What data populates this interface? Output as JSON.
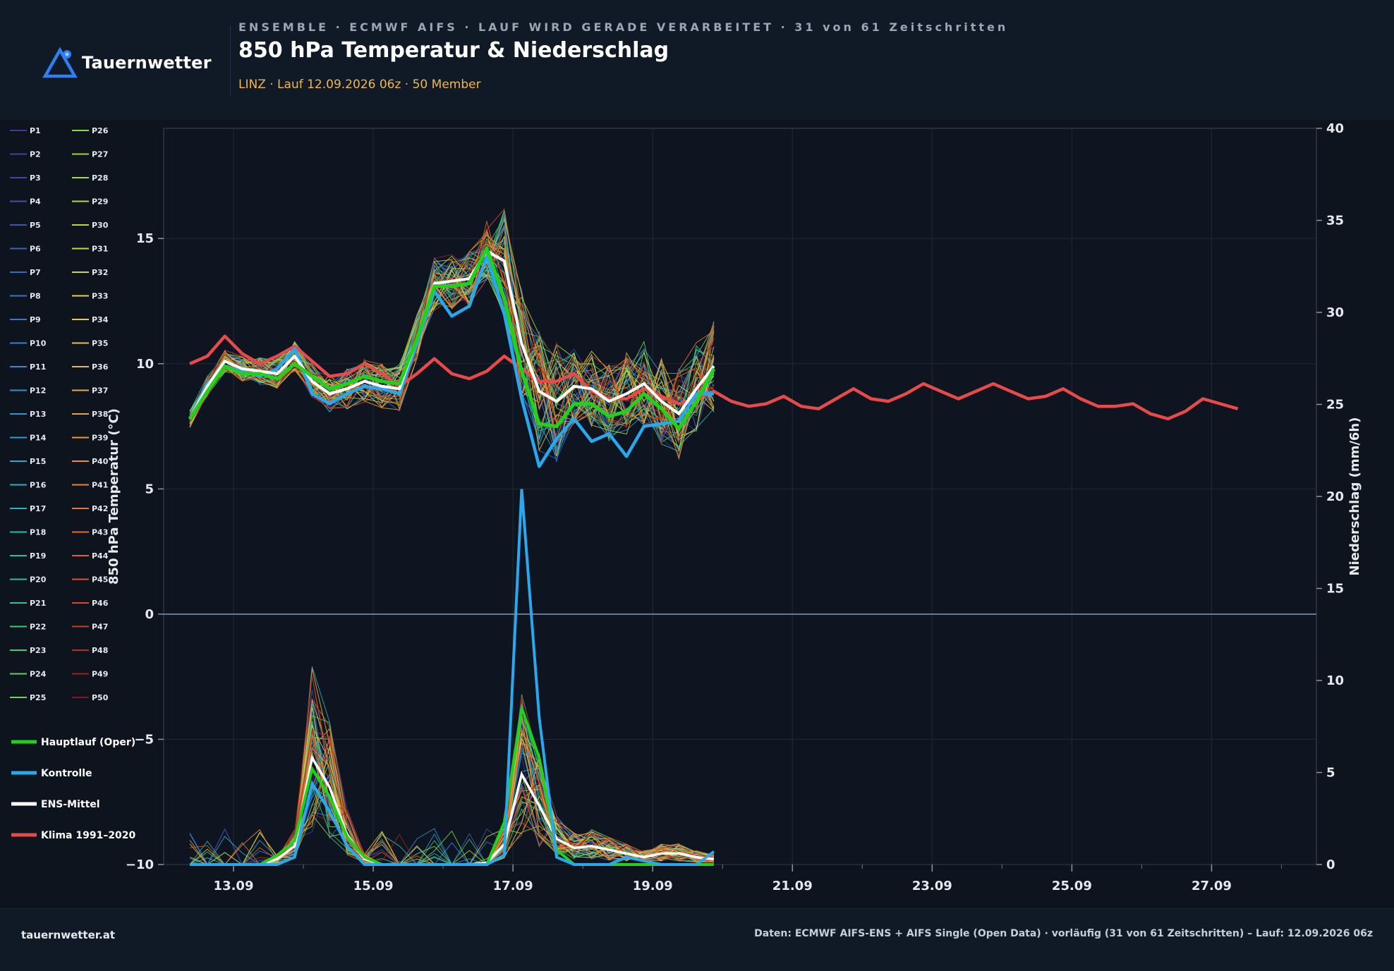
{
  "header": {
    "logo_text": "Tauernwetter",
    "kicker": "ENSEMBLE · ECMWF AIFS · LAUF WIRD GERADE VERARBEITET · 31 von 61 Zeitschritten",
    "title": "850 hPa Temperatur & Niederschlag",
    "subtitle": "LINZ · Lauf 12.09.2026 06z · 50 Member"
  },
  "footer": {
    "site": "tauernwetter.at",
    "source": "Daten: ECMWF AIFS-ENS + AIFS Single (Open Data) · vorläufig (31 von 61 Zeitschritten) – Lauf: 12.09.2026 06z"
  },
  "colors": {
    "oper": "#22d11c",
    "control": "#29a8ee",
    "mean": "#ffffff",
    "clima": "#e84a4a",
    "zero_line": "#7a90a6"
  },
  "chart_data": {
    "type": "line",
    "ylabel": "850 hPa Temperatur (°C)",
    "y2label": "Niederschlag (mm/6h)",
    "ylim": [
      -10,
      19.4
    ],
    "y2lim": [
      0,
      40
    ],
    "yticks": [
      -10,
      -5,
      0,
      5,
      10,
      15
    ],
    "y2ticks": [
      0,
      5,
      10,
      15,
      20,
      25,
      30,
      35,
      40
    ],
    "xlim": [
      "12.09.2026 00z",
      "28.09.2026 12z"
    ],
    "xticks": [
      "13.09",
      "15.09",
      "17.09",
      "19.09",
      "21.09",
      "23.09",
      "25.09",
      "27.09"
    ],
    "grid": true,
    "legend_position": "left",
    "time_start": "12.09.2026 09z",
    "time_step_h": 6,
    "members": [
      "P1",
      "P2",
      "P3",
      "P4",
      "P5",
      "P6",
      "P7",
      "P8",
      "P9",
      "P10",
      "P11",
      "P12",
      "P13",
      "P14",
      "P15",
      "P16",
      "P17",
      "P18",
      "P19",
      "P20",
      "P21",
      "P22",
      "P23",
      "P24",
      "P25",
      "P26",
      "P27",
      "P28",
      "P29",
      "P30",
      "P31",
      "P32",
      "P33",
      "P34",
      "P35",
      "P36",
      "P37",
      "P38",
      "P39",
      "P40",
      "P41",
      "P42",
      "P43",
      "P44",
      "P45",
      "P46",
      "P47",
      "P48",
      "P49",
      "P50"
    ],
    "main_legend": [
      "Hauptlauf (Oper)",
      "Kontrolle",
      "ENS-Mittel",
      "Klima 1991–2020"
    ],
    "temperature": {
      "oper": [
        7.8,
        8.9,
        9.9,
        9.6,
        9.6,
        9.4,
        10.0,
        9.5,
        9.0,
        9.2,
        9.5,
        9.3,
        9.2,
        11.0,
        13.1,
        13.1,
        13.2,
        14.6,
        12.6,
        9.7,
        7.6,
        7.5,
        8.4,
        8.4,
        7.9,
        8.1,
        8.8,
        8.2,
        7.4,
        8.5,
        9.8
      ],
      "control": [
        7.8,
        9.2,
        9.9,
        9.7,
        9.5,
        9.8,
        10.6,
        8.8,
        8.4,
        8.8,
        9.1,
        9.0,
        8.8,
        10.8,
        12.9,
        11.9,
        12.3,
        14.3,
        12.0,
        8.6,
        5.9,
        7.0,
        7.8,
        6.9,
        7.2,
        6.3,
        7.5,
        7.6,
        7.7,
        8.8,
        8.8
      ],
      "mean": [
        7.8,
        9.1,
        10.1,
        9.8,
        9.7,
        9.6,
        10.3,
        9.3,
        8.8,
        9.0,
        9.3,
        9.1,
        9.0,
        11.0,
        13.2,
        13.3,
        13.4,
        14.5,
        14.1,
        10.8,
        8.9,
        8.5,
        9.1,
        9.0,
        8.5,
        8.8,
        9.2,
        8.5,
        8.0,
        9.0,
        9.9
      ],
      "clima": [
        10.0,
        10.3,
        11.1,
        10.4,
        10.0,
        10.3,
        10.7,
        10.1,
        9.5,
        9.6,
        10.0,
        9.6,
        9.1,
        9.6,
        10.2,
        9.6,
        9.4,
        9.7,
        10.3,
        9.8,
        9.3,
        9.3,
        9.6,
        8.9,
        8.6,
        8.6,
        9.0,
        8.7,
        8.4,
        8.6,
        8.9,
        8.5,
        8.3,
        8.4,
        8.7,
        8.3,
        8.2,
        8.6,
        9.0,
        8.6,
        8.5,
        8.8,
        9.2,
        8.9,
        8.6,
        8.9,
        9.2,
        8.9,
        8.6,
        8.7,
        9.0,
        8.6,
        8.3,
        8.3,
        8.4,
        8.0,
        7.8,
        8.1,
        8.6,
        8.4,
        8.2
      ]
    },
    "precipitation": {
      "oper": [
        0,
        0,
        0,
        0,
        0,
        0.5,
        1.3,
        5.2,
        3.7,
        1.5,
        0.4,
        0,
        0,
        0,
        0,
        0,
        0,
        0,
        2.3,
        8.5,
        5.8,
        0.8,
        0,
        0,
        0,
        0,
        0,
        0,
        0,
        0,
        0
      ],
      "control": [
        0,
        0,
        0,
        0,
        0,
        0,
        0.4,
        4.4,
        2.9,
        1.0,
        0,
        0,
        0,
        0,
        0,
        0,
        0,
        0,
        0.5,
        20.4,
        8.0,
        0.4,
        0,
        0,
        0,
        0.4,
        0.2,
        0,
        0,
        0,
        0.7
      ],
      "mean": [
        0,
        0,
        0,
        0,
        0,
        0.3,
        1.0,
        5.8,
        4.2,
        1.6,
        0.3,
        0,
        0,
        0,
        0,
        0,
        0,
        0.1,
        1.1,
        4.9,
        3.2,
        1.4,
        0.9,
        1.0,
        0.8,
        0.6,
        0.4,
        0.6,
        0.6,
        0.4,
        0.3
      ]
    }
  }
}
